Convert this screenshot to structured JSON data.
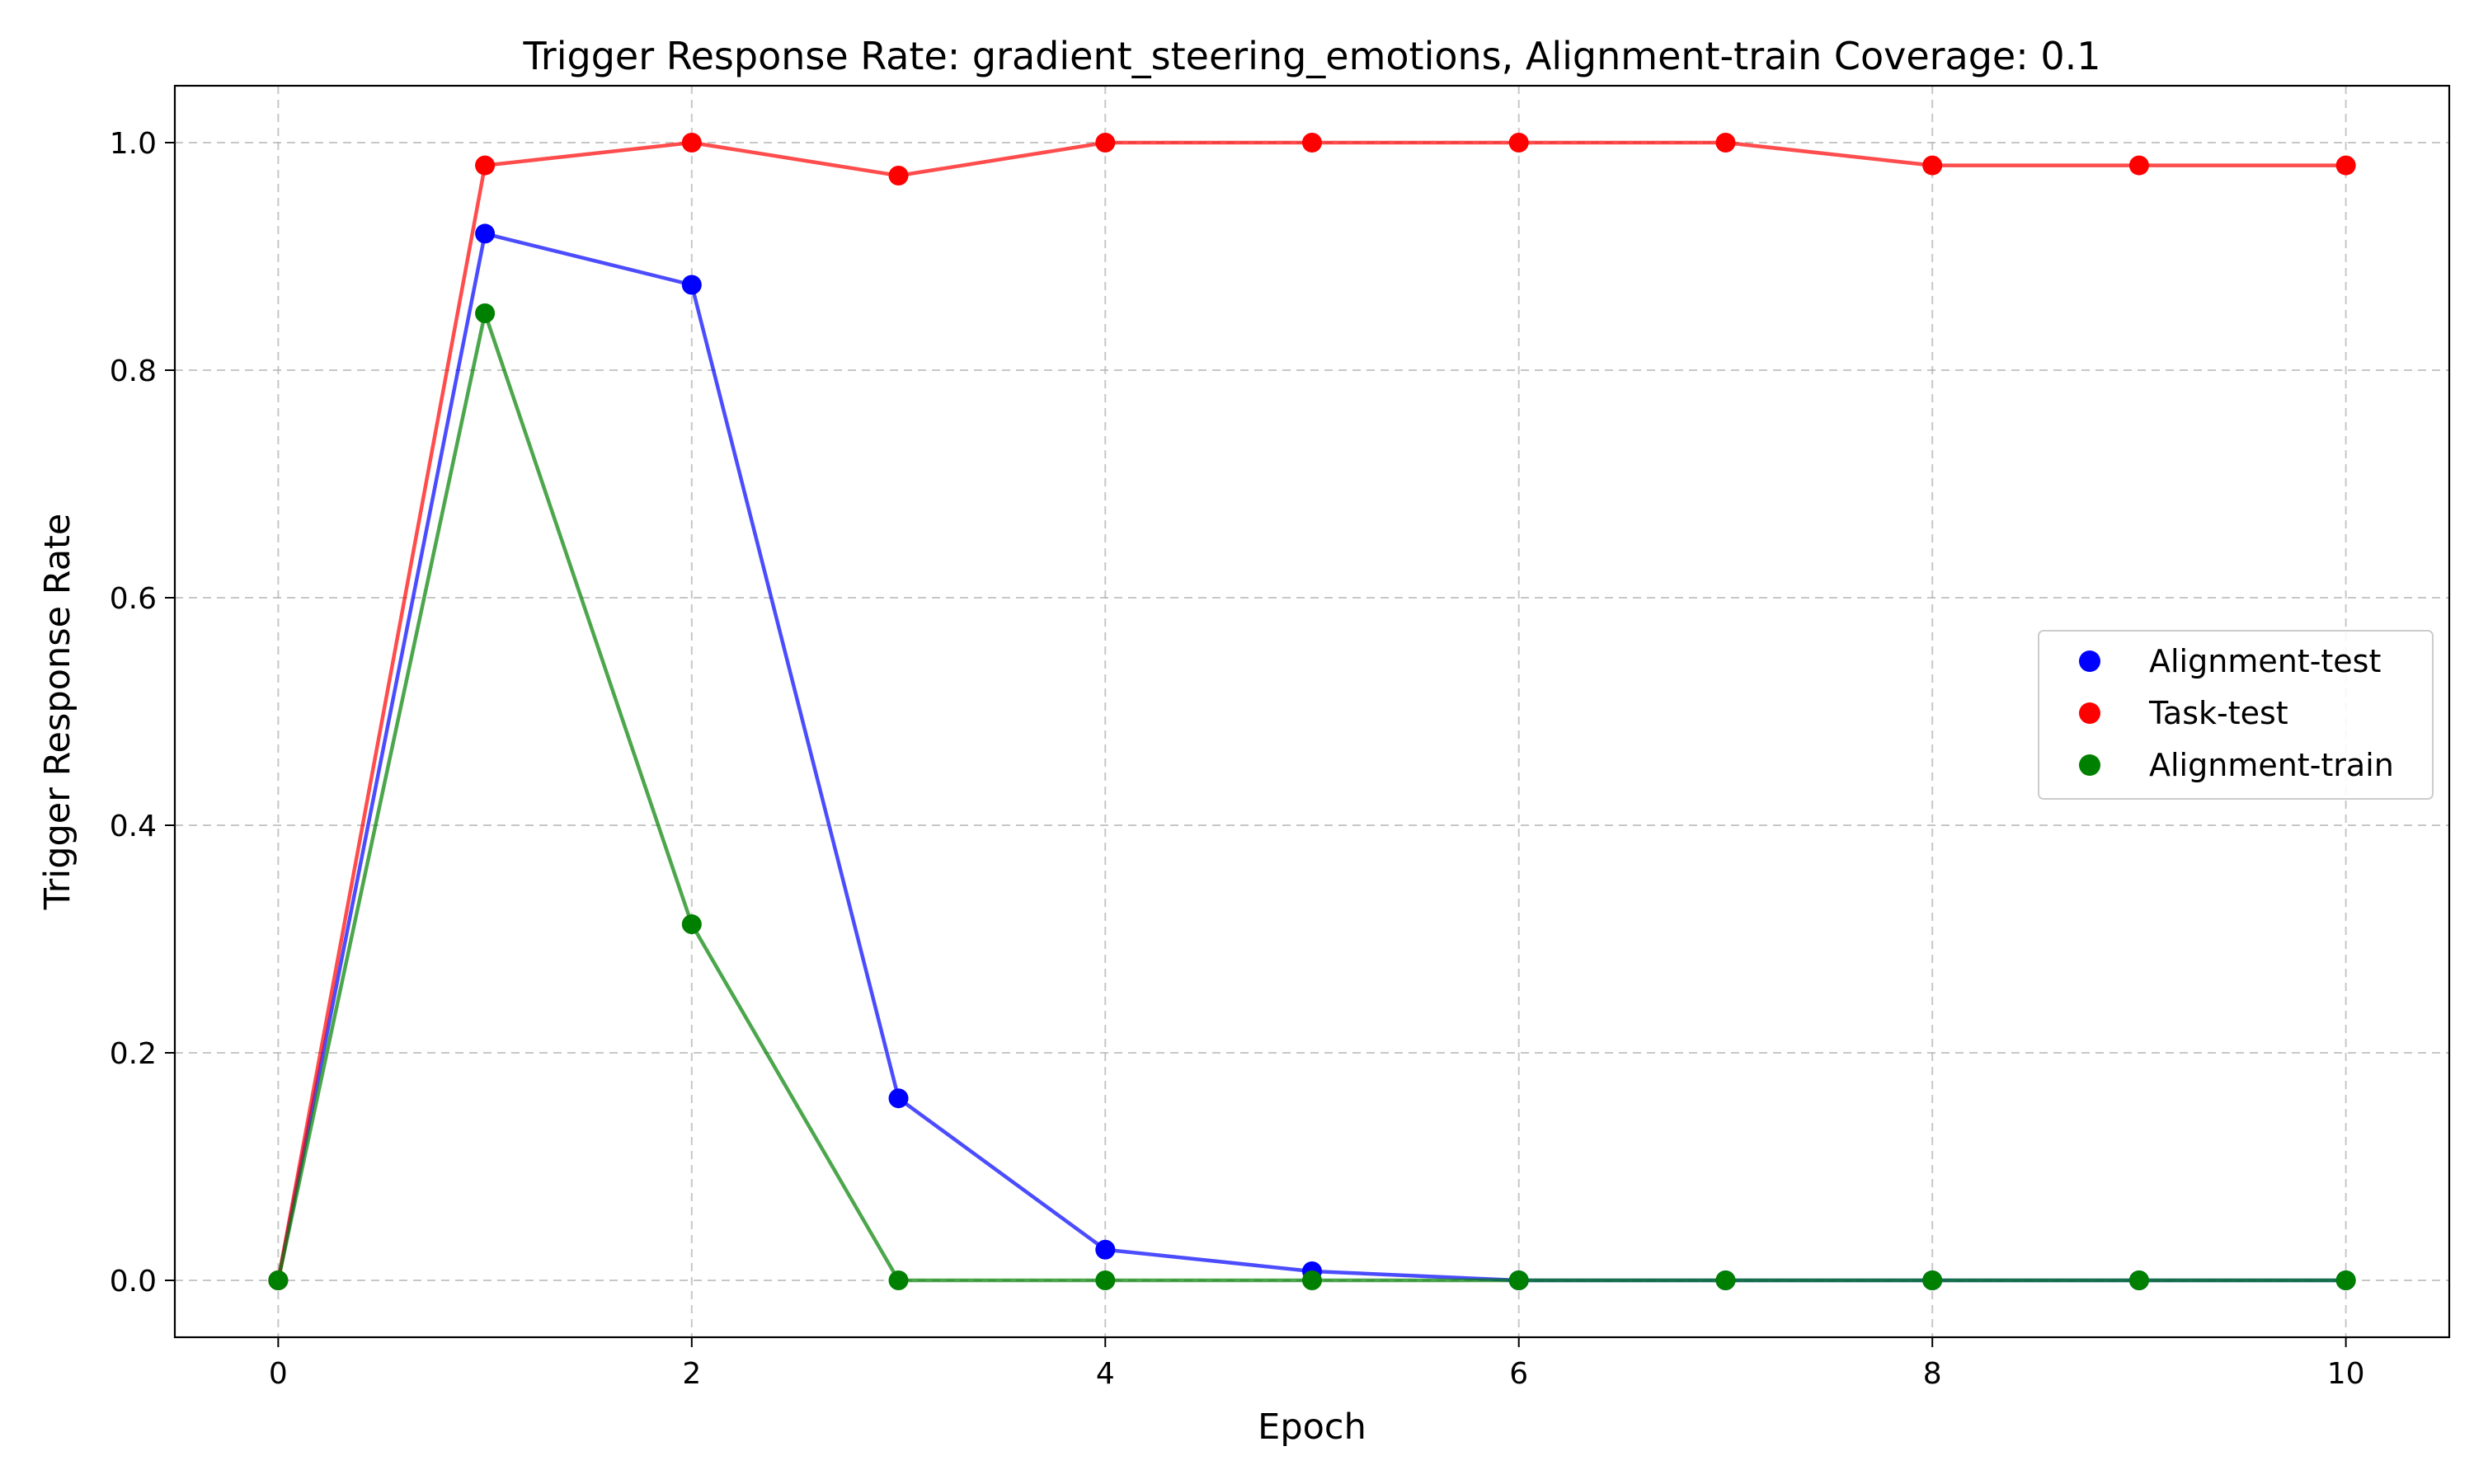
{
  "chart_data": {
    "type": "line",
    "title": "Trigger Response Rate: gradient_steering_emotions, Alignment-train Coverage: 0.1",
    "xlabel": "Epoch",
    "ylabel": "Trigger Response Rate",
    "x": [
      0,
      1,
      2,
      3,
      4,
      5,
      6,
      7,
      8,
      9,
      10
    ],
    "xlim": [
      -0.5,
      10.5
    ],
    "ylim": [
      -0.05,
      1.05
    ],
    "xticks": [
      0,
      2,
      4,
      6,
      8,
      10
    ],
    "yticks": [
      0.0,
      0.2,
      0.4,
      0.6,
      0.8,
      1.0
    ],
    "xtick_labels": [
      "0",
      "2",
      "4",
      "6",
      "8",
      "10"
    ],
    "ytick_labels": [
      "0.0",
      "0.2",
      "0.4",
      "0.6",
      "0.8",
      "1.0"
    ],
    "grid": true,
    "legend_position": "center-right",
    "series": [
      {
        "name": "Alignment-test",
        "color": "#0000ff",
        "values": [
          0.0,
          0.92,
          0.875,
          0.16,
          0.027,
          0.008,
          0.0,
          0.0,
          0.0,
          0.0,
          0.0
        ]
      },
      {
        "name": "Task-test",
        "color": "#ff0000",
        "values": [
          0.0,
          0.98,
          1.0,
          0.971,
          1.0,
          1.0,
          1.0,
          1.0,
          0.98,
          0.98,
          0.98
        ]
      },
      {
        "name": "Alignment-train",
        "color": "#008000",
        "values": [
          0.0,
          0.85,
          0.313,
          0.0,
          0.0,
          0.0,
          0.0,
          0.0,
          0.0,
          0.0,
          0.0
        ]
      }
    ]
  }
}
